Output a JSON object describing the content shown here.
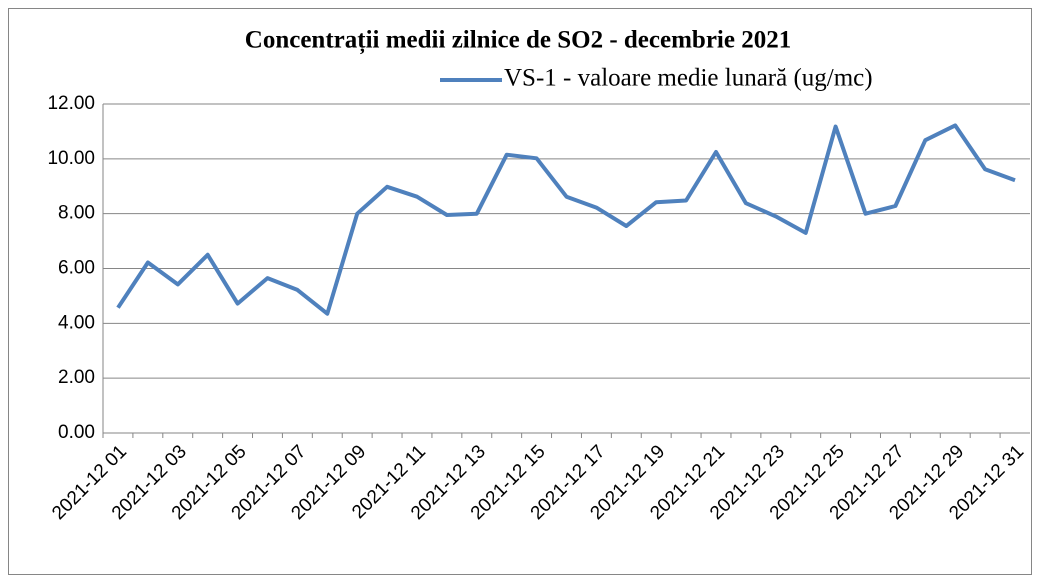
{
  "chart_data": {
    "type": "line",
    "title": "Concentrații  medii zilnice de SO2 - decembrie 2021",
    "categories": [
      "2021-12 01",
      null,
      "2021-12 03",
      null,
      "2021-12 05",
      null,
      "2021-12 07",
      null,
      "2021-12 09",
      null,
      "2021-12 11",
      null,
      "2021-12 13",
      null,
      "2021-12 15",
      null,
      "2021-12 17",
      null,
      "2021-12 19",
      null,
      "2021-12 21",
      null,
      "2021-12 23",
      null,
      "2021-12 25",
      null,
      "2021-12 27",
      null,
      "2021-12 29",
      null,
      "2021-12 31"
    ],
    "series": [
      {
        "name": "VS-1 - valoare medie lunară (ug/mc)",
        "color": "#4f81bd",
        "values": [
          4.57,
          6.22,
          5.42,
          6.5,
          4.72,
          5.65,
          5.22,
          4.35,
          8.0,
          8.98,
          8.62,
          7.95,
          8.0,
          10.15,
          10.02,
          8.62,
          8.22,
          7.55,
          8.42,
          8.48,
          10.25,
          8.38,
          7.9,
          7.3,
          11.18,
          8.0,
          8.28,
          10.68,
          11.22,
          9.62,
          9.22
        ]
      }
    ],
    "ylim": [
      0,
      12
    ],
    "yticks": [
      {
        "value": 0,
        "label": "0.00"
      },
      {
        "value": 2,
        "label": "2.00"
      },
      {
        "value": 4,
        "label": "4.00"
      },
      {
        "value": 6,
        "label": "6.00"
      },
      {
        "value": 8,
        "label": "8.00"
      },
      {
        "value": 10,
        "label": "10.00"
      },
      {
        "value": 12,
        "label": "12.00"
      }
    ],
    "grid": true,
    "legend": "top-right"
  }
}
